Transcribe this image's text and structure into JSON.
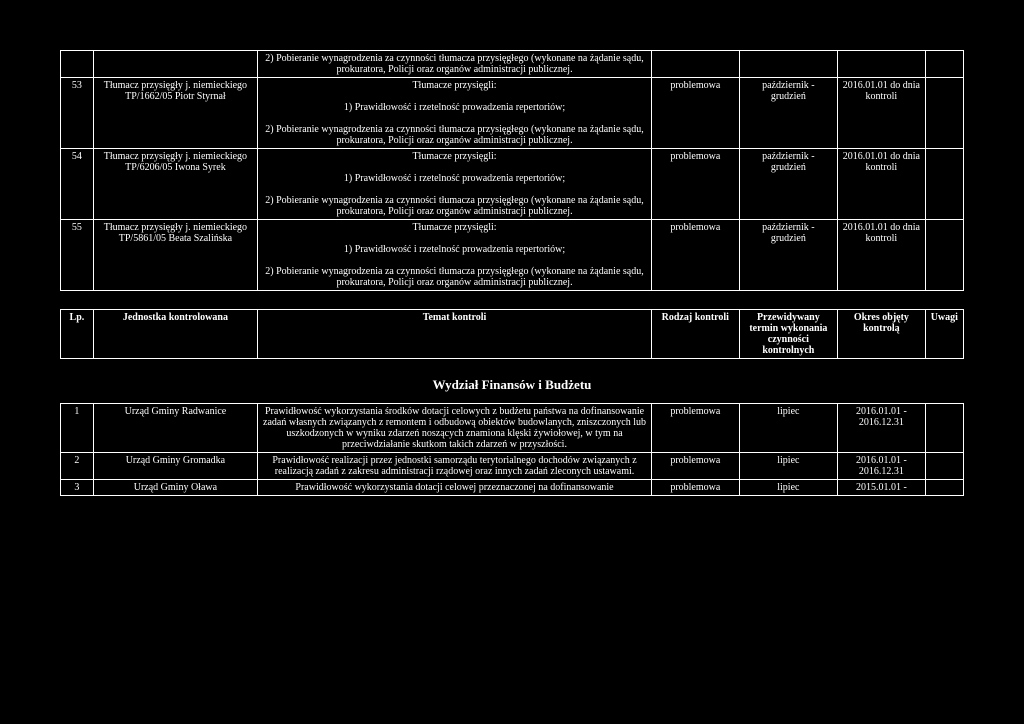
{
  "table1": {
    "rows": [
      {
        "lp": "",
        "entity": "",
        "subject": "2) Pobieranie wynagrodzenia za czynności tłumacza przysięgłego (wykonane na żądanie sądu, prokuratora, Policji oraz organów administracji publicznej.",
        "type": "",
        "term": "",
        "period": "",
        "notes": ""
      },
      {
        "lp": "53",
        "entity": "Tłumacz przysięgły j. niemieckiego TP/1662/05 Piotr Styrnał",
        "subject": "Tłumacze przysięgli:\n\n1) Prawidłowość i rzetelność prowadzenia repertoriów;\n\n2) Pobieranie wynagrodzenia za czynności tłumacza przysięgłego (wykonane na żądanie sądu, prokuratora, Policji oraz organów administracji publicznej.",
        "type": "problemowa",
        "term": "październik - grudzień",
        "period": "2016.01.01 do dnia kontroli",
        "notes": ""
      },
      {
        "lp": "54",
        "entity": "Tłumacz przysięgły j. niemieckiego TP/6206/05 Iwona Syrek",
        "subject": "Tłumacze przysięgli:\n\n1) Prawidłowość i rzetelność prowadzenia repertoriów;\n\n2) Pobieranie wynagrodzenia za czynności tłumacza przysięgłego (wykonane na żądanie sądu, prokuratora, Policji oraz organów administracji publicznej.",
        "type": "problemowa",
        "term": "październik - grudzień",
        "period": "2016.01.01 do dnia kontroli",
        "notes": ""
      },
      {
        "lp": "55",
        "entity": "Tłumacz przysięgły j. niemieckiego TP/5861/05 Beata Szalińska",
        "subject": "Tłumacze przysięgli:\n\n1) Prawidłowość i rzetelność prowadzenia repertoriów;\n\n2) Pobieranie wynagrodzenia za czynności tłumacza przysięgłego (wykonane na żądanie sądu, prokuratora, Policji oraz organów administracji publicznej.",
        "type": "problemowa",
        "term": "październik - grudzień",
        "period": "2016.01.01 do dnia kontroli",
        "notes": ""
      }
    ]
  },
  "header": {
    "lp": "Lp.",
    "entity": "Jednostka kontrolowana",
    "subject": "Temat kontroli",
    "type": "Rodzaj kontroli",
    "term": "Przewidywany termin wykonania czynności kontrolnych",
    "period": "Okres objęty kontrolą",
    "notes": "Uwagi"
  },
  "section_title": "Wydział Finansów i Budżetu",
  "table2": {
    "rows": [
      {
        "lp": "1",
        "entity": "Urząd Gminy Radwanice",
        "subject": "Prawidłowość wykorzystania środków dotacji celowych z budżetu państwa na dofinansowanie zadań własnych związanych z remontem i odbudową obiektów budowlanych, zniszczonych lub uszkodzonych w wyniku zdarzeń noszących znamiona klęski żywiołowej, w tym na przeciwdziałanie skutkom takich zdarzeń w przyszłości.",
        "type": "problemowa",
        "term": "lipiec",
        "period": "2016.01.01 - 2016.12.31",
        "notes": ""
      },
      {
        "lp": "2",
        "entity": "Urząd Gminy Gromadka",
        "subject": "Prawidłowość realizacji przez jednostki samorządu terytorialnego dochodów związanych z realizacją zadań z zakresu administracji rządowej oraz innych zadań zleconych ustawami.",
        "type": "problemowa",
        "term": "lipiec",
        "period": "2016.01.01 - 2016.12.31",
        "notes": ""
      },
      {
        "lp": "3",
        "entity": "Urząd Gminy Oława",
        "subject": "Prawidłowość wykorzystania dotacji celowej przeznaczonej na dofinansowanie",
        "type": "problemowa",
        "term": "lipiec",
        "period": "2015.01.01 -",
        "notes": ""
      }
    ]
  }
}
